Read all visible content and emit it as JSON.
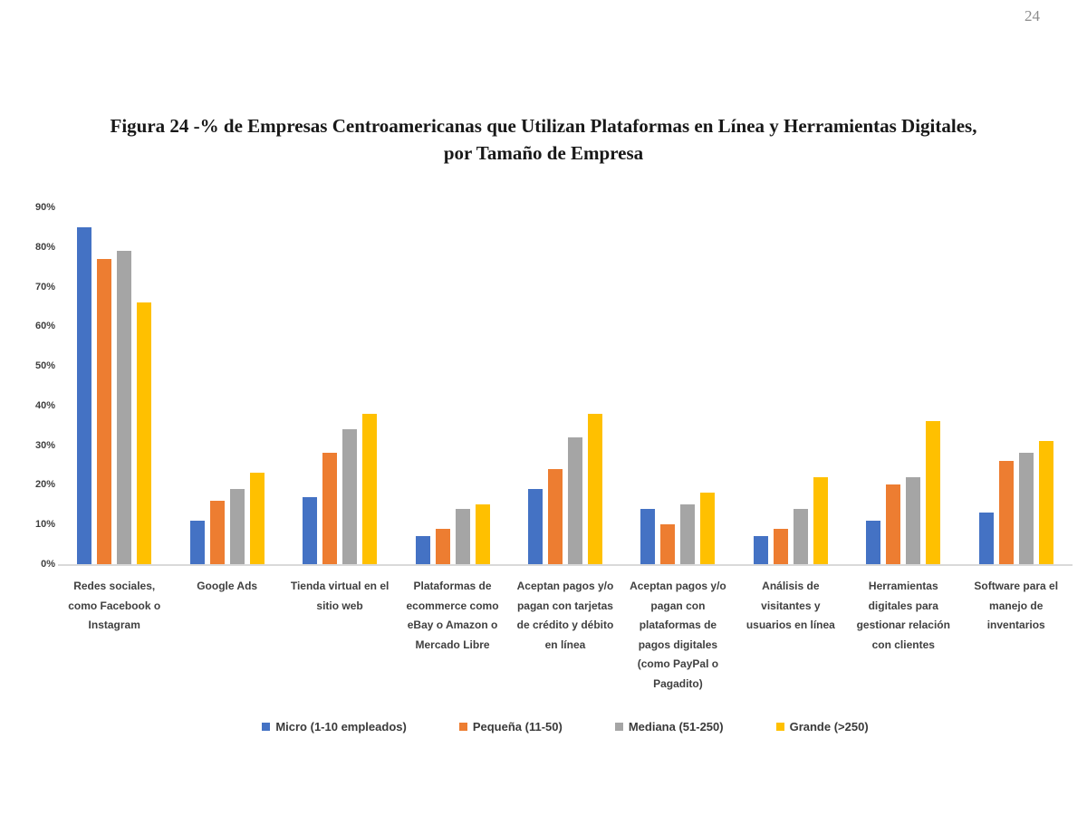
{
  "page": {
    "number": "24"
  },
  "chart_data": {
    "type": "bar",
    "title": "Figura 24 -% de Empresas Centroamericanas que Utilizan Plataformas en Línea y Herramientas Digitales, por Tamaño de Empresa",
    "categories": [
      "Redes sociales, como Facebook o Instagram",
      "Google Ads",
      "Tienda virtual en el sitio web",
      "Plataformas de ecommerce como eBay o Amazon o Mercado Libre",
      "Aceptan pagos y/o pagan con tarjetas de crédito y débito en línea",
      "Aceptan pagos y/o pagan con plataformas de pagos digitales (como PayPal o Pagadito)",
      "Análisis de visitantes y usuarios en línea",
      "Herramientas digitales para gestionar relación con clientes",
      "Software para el manejo de inventarios"
    ],
    "series": [
      {
        "name": "Micro (1-10 empleados)",
        "color": "#4472C4",
        "values": [
          85,
          11,
          17,
          7,
          19,
          14,
          7,
          11,
          13
        ]
      },
      {
        "name": "Pequeña (11-50)",
        "color": "#ED7D31",
        "values": [
          77,
          16,
          28,
          9,
          24,
          10,
          9,
          20,
          26
        ]
      },
      {
        "name": "Mediana (51-250)",
        "color": "#A5A5A5",
        "values": [
          79,
          19,
          34,
          14,
          32,
          15,
          14,
          22,
          28
        ]
      },
      {
        "name": "Grande (>250)",
        "color": "#FFC000",
        "values": [
          66,
          23,
          38,
          15,
          38,
          18,
          22,
          36,
          31
        ]
      }
    ],
    "ylim": [
      0,
      90
    ],
    "ytick_step": 10,
    "ytick_labels": [
      "0%",
      "10%",
      "20%",
      "30%",
      "40%",
      "50%",
      "60%",
      "70%",
      "80%",
      "90%"
    ],
    "grid": false,
    "legend_position": "bottom",
    "axis_line_color": "#d9d9d9"
  }
}
